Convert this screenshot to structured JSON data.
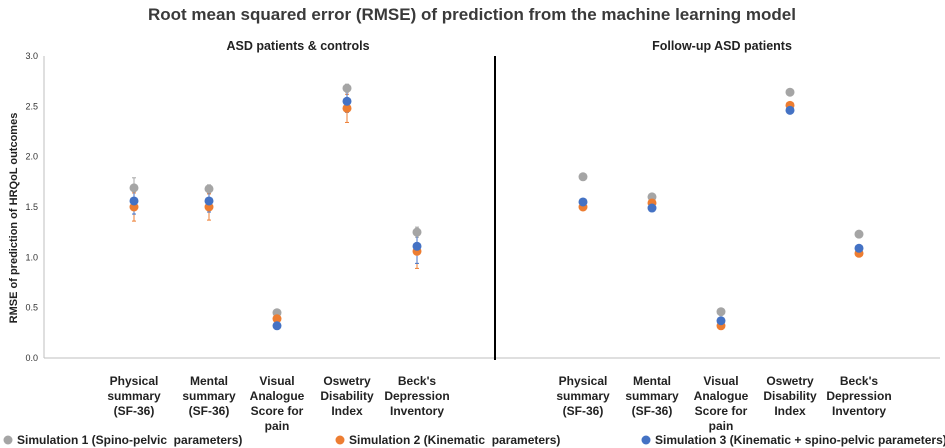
{
  "chart_data": {
    "type": "scatter",
    "title": "Root mean squared error (RMSE) of prediction from the machine learning model",
    "ylabel": "RMSE of prediction of HRQoL outcomes",
    "ylim": [
      0,
      3.0
    ],
    "yticks": [
      "0.0",
      "0.5",
      "1.0",
      "1.5",
      "2.0",
      "2.5",
      "3.0"
    ],
    "categories": [
      [
        "Physical",
        "summary",
        "(SF-36)"
      ],
      [
        "Mental",
        "summary",
        "(SF-36)"
      ],
      [
        "Visual",
        "Analogue",
        "Score for",
        "pain"
      ],
      [
        "Oswetry",
        "Disability",
        "Index"
      ],
      [
        "Beck's",
        "Depression",
        "Inventory"
      ]
    ],
    "panels": [
      {
        "title": "ASD patients & controls",
        "series": [
          {
            "name": "Simulation 1 (Spino-pelvic  parameters)",
            "values": [
              1.69,
              1.68,
              0.45,
              2.68,
              1.25
            ],
            "errors": [
              0.1,
              0.04,
              0.03,
              0.04,
              0.05
            ]
          },
          {
            "name": "Simulation 2 (Kinematic  parameters)",
            "values": [
              1.5,
              1.5,
              0.39,
              2.48,
              1.06
            ],
            "errors": [
              0.14,
              0.13,
              0.04,
              0.14,
              0.17
            ]
          },
          {
            "name": "Simulation 3 (Kinematic + spino-pelvic parameters)",
            "values": [
              1.56,
              1.56,
              0.32,
              2.55,
              1.11
            ],
            "errors": [
              0.13,
              0.11,
              0.03,
              0.11,
              0.17
            ]
          }
        ]
      },
      {
        "title": "Follow-up ASD patients",
        "series": [
          {
            "name": "Simulation 1 (Spino-pelvic  parameters)",
            "values": [
              1.8,
              1.6,
              0.46,
              2.64,
              1.23
            ]
          },
          {
            "name": "Simulation 2 (Kinematic  parameters)",
            "values": [
              1.5,
              1.54,
              0.32,
              2.51,
              1.04
            ]
          },
          {
            "name": "Simulation 3 (Kinematic + spino-pelvic parameters)",
            "values": [
              1.55,
              1.49,
              0.37,
              2.46,
              1.09
            ]
          }
        ]
      }
    ],
    "legend": [
      {
        "name": "Simulation 1 (Spino-pelvic  parameters)",
        "color": "#a5a5a5"
      },
      {
        "name": "Simulation 2 (Kinematic  parameters)",
        "color": "#ed7d31"
      },
      {
        "name": "Simulation 3 (Kinematic + spino-pelvic parameters)",
        "color": "#4472c4"
      }
    ],
    "legend_position": "bottom",
    "colors": [
      "#a5a5a5",
      "#ed7d31",
      "#4472c4"
    ]
  }
}
